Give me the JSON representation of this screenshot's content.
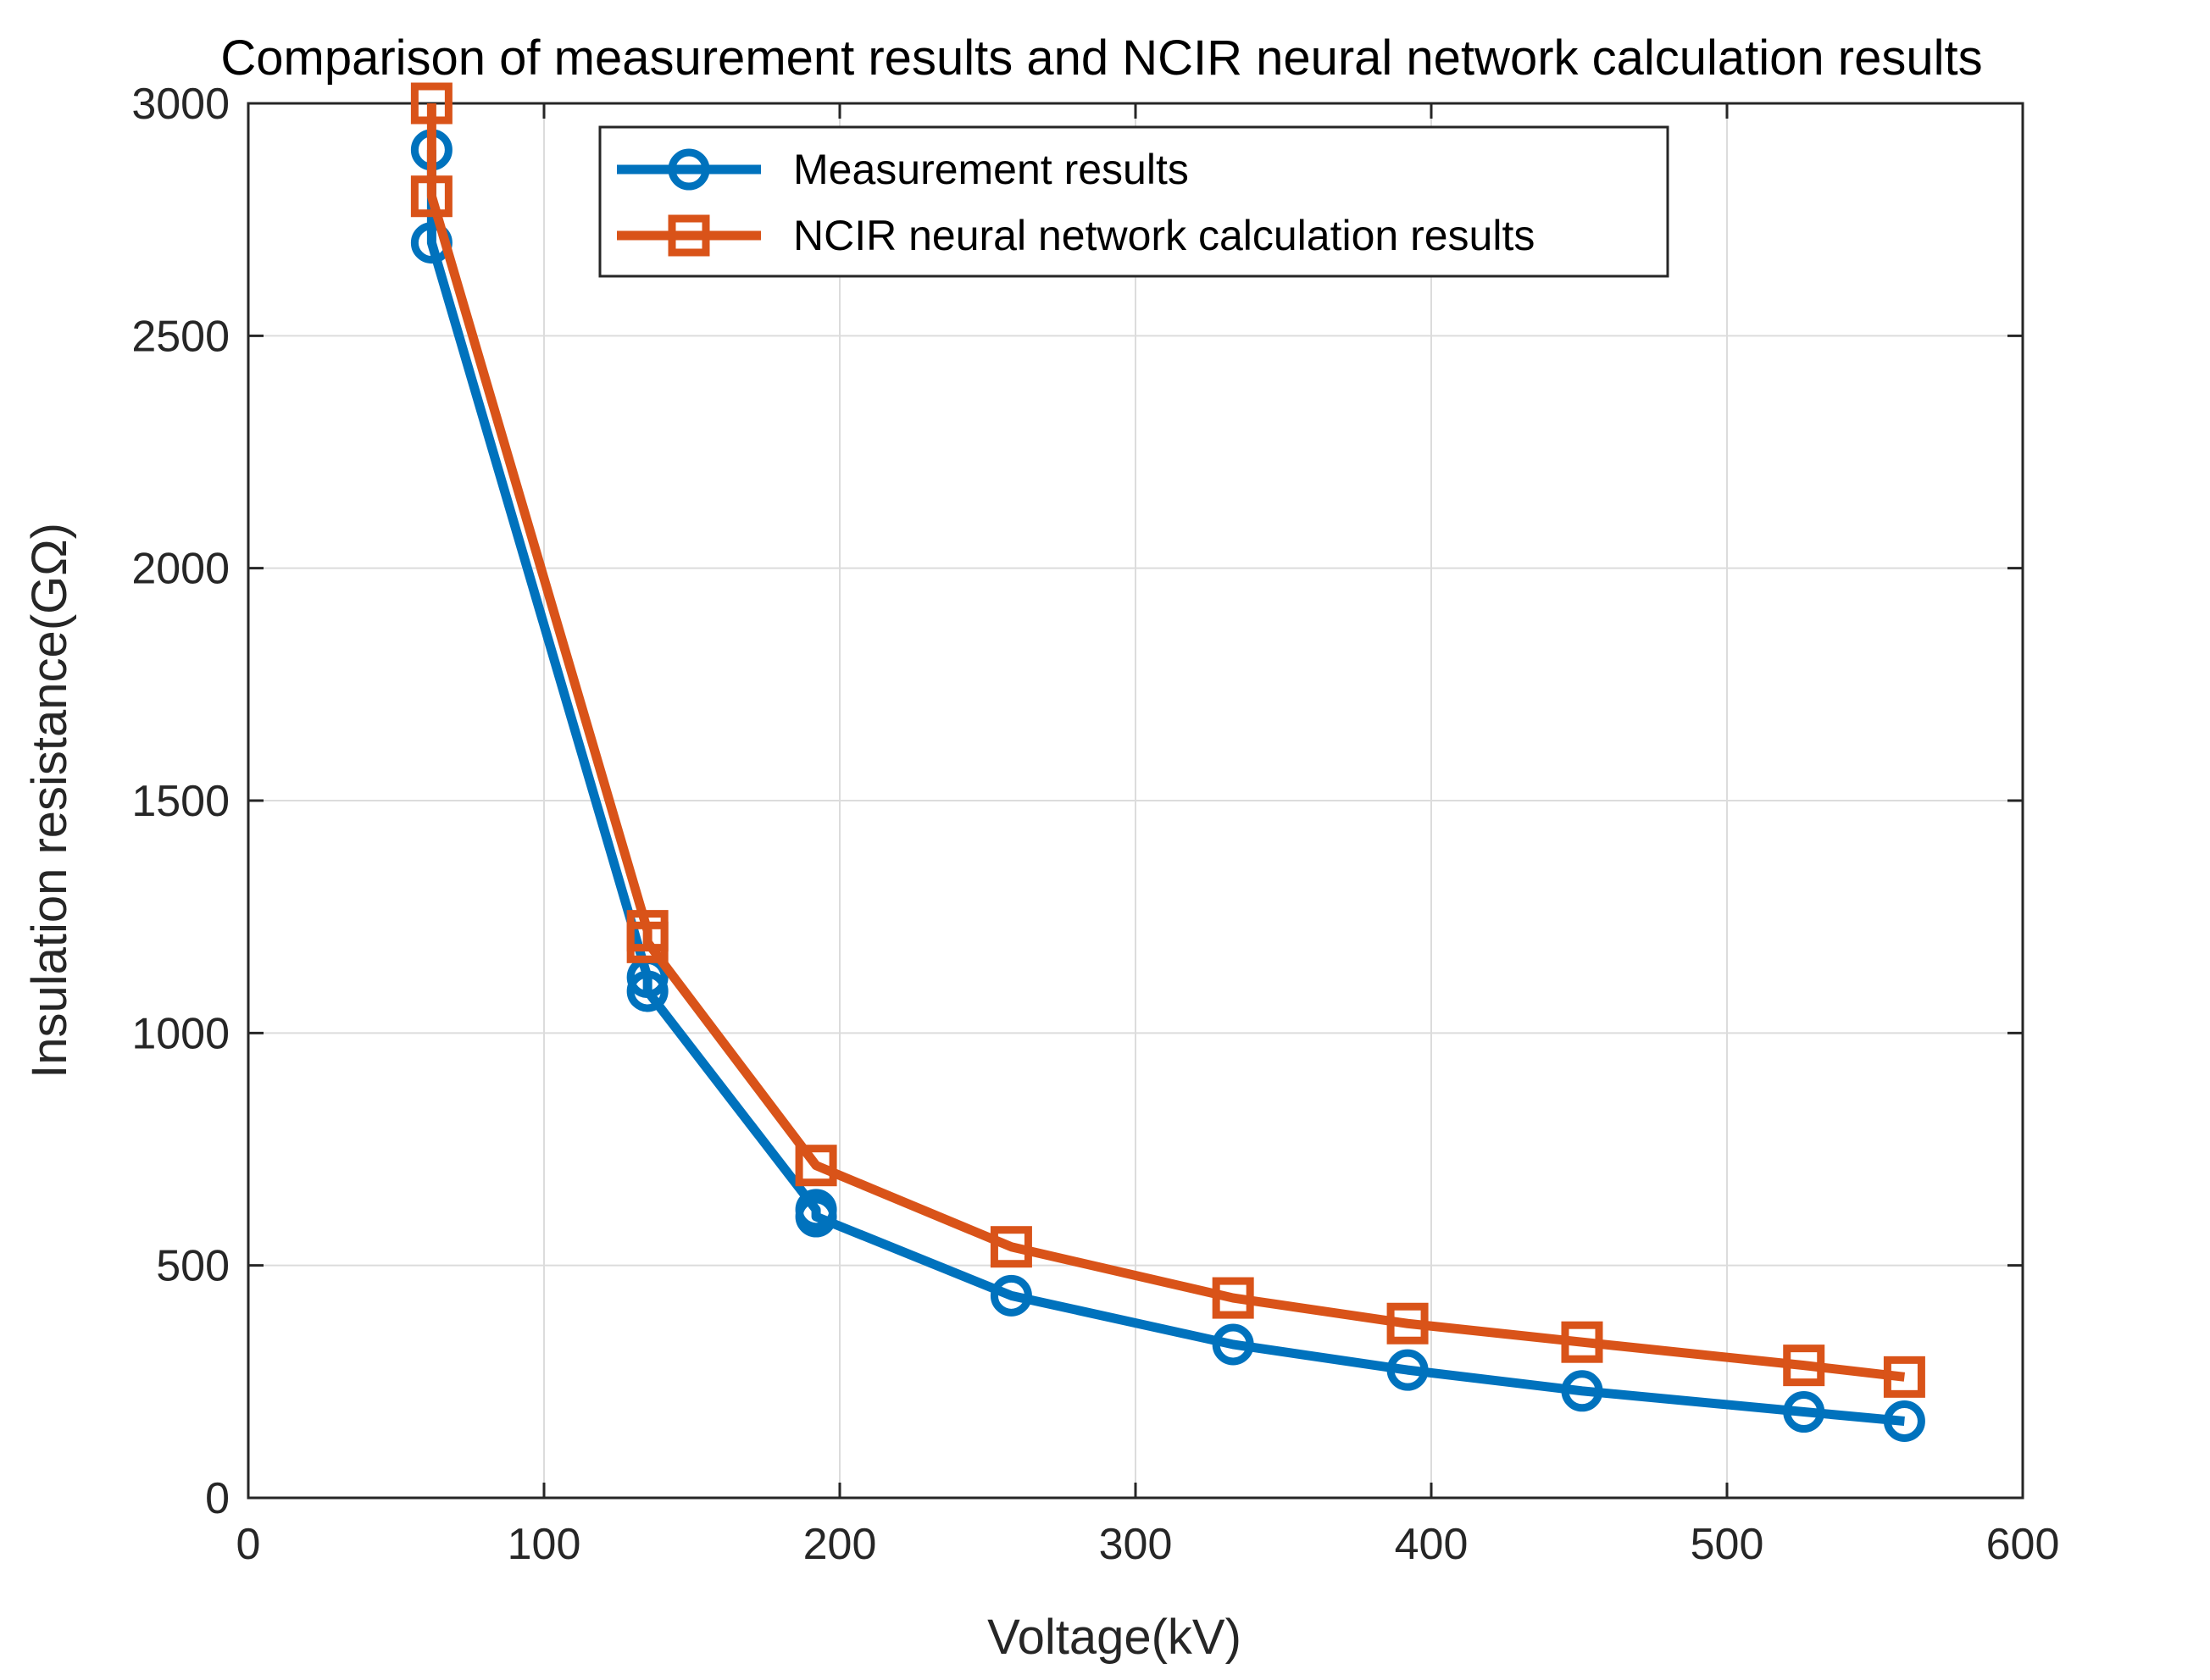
{
  "chart_data": {
    "type": "line",
    "title": "Comparison of measurement results and NCIR neural network calculation results",
    "xlabel": "Voltage(kV)",
    "ylabel": "Insulation resistance(GΩ)",
    "xlim": [
      0,
      600
    ],
    "ylim": [
      0,
      3000
    ],
    "xticks": [
      0,
      100,
      200,
      300,
      400,
      500,
      600
    ],
    "yticks": [
      0,
      500,
      1000,
      1500,
      2000,
      2500,
      3000
    ],
    "xtick_labels": [
      "0",
      "100",
      "200",
      "300",
      "400",
      "500",
      "600"
    ],
    "ytick_labels": [
      "0",
      "500",
      "1000",
      "1500",
      "2000",
      "2500",
      "3000"
    ],
    "grid": true,
    "legend_position": "top-center",
    "series": [
      {
        "name": "Measurement results",
        "color": "#0072BD",
        "marker": "circle",
        "x": [
          62,
          62,
          135,
          135,
          192,
          192,
          258,
          333,
          392,
          451,
          526,
          560
        ],
        "y": [
          2900,
          2700,
          1120,
          1090,
          620,
          605,
          435,
          330,
          275,
          230,
          185,
          165
        ]
      },
      {
        "name": "NCIR neural network calculation results",
        "color": "#D95319",
        "marker": "square",
        "x": [
          62,
          62,
          135,
          135,
          192,
          258,
          333,
          392,
          451,
          526,
          560
        ],
        "y": [
          3000,
          2800,
          1220,
          1195,
          715,
          540,
          430,
          375,
          335,
          285,
          260
        ]
      }
    ]
  }
}
